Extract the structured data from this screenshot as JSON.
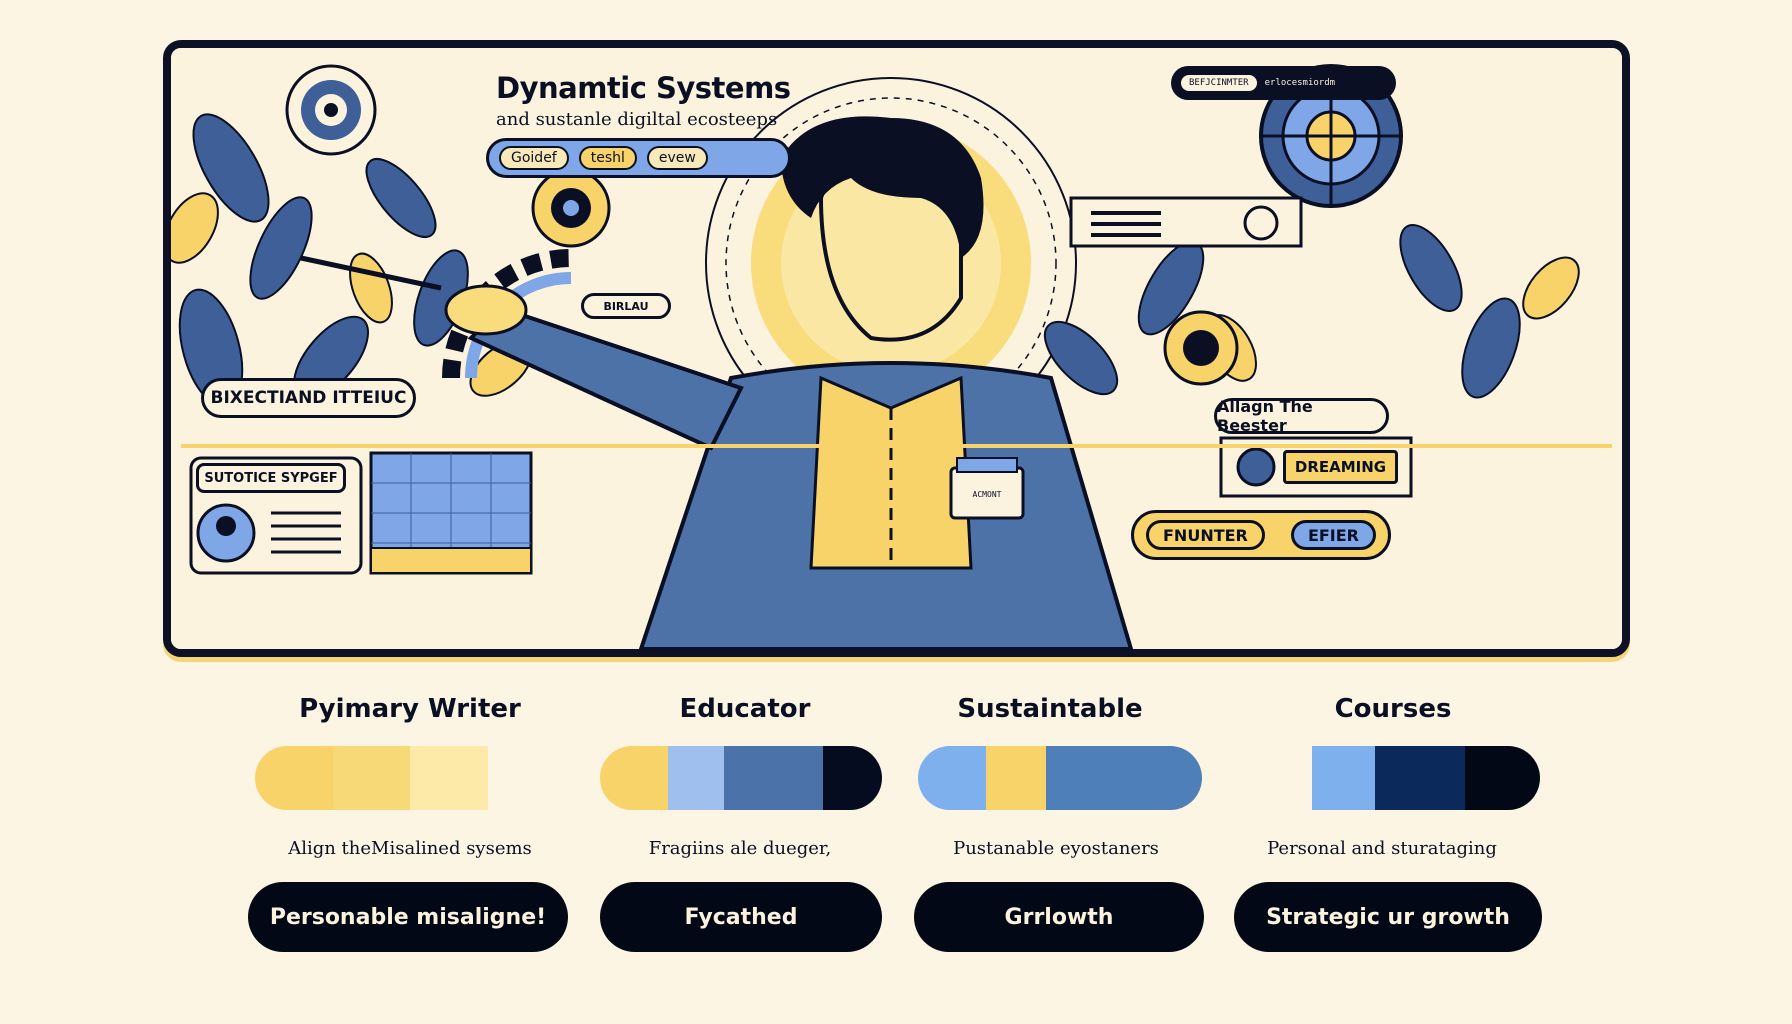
{
  "banner": {
    "title": "Dynamtic Systems",
    "subtitle": "and sustanle digiltal ecosteeps",
    "tabs": [
      "Goidef",
      "teshl",
      "evew"
    ],
    "top_field": "BEFJCINMTER",
    "top_meta": "erlocesmiordm",
    "badge_burlaw": "BIRLAU",
    "chip_left": "BIXECTIAND ITTEIUC",
    "panel_left_title": "SUTOTICE SYPGEF",
    "chip_right": "Allagn The Beester",
    "chip_dreaming": "DREAMING",
    "btn_fnunter": "FNUNTER",
    "btn_efier": "EFIER",
    "name_tag": "ACMONT"
  },
  "cards": [
    {
      "title": "Pyimary Writer",
      "caption": "Align theMisalined sysems",
      "button": "Personable misaligne!",
      "colors": [
        "#f7d36a",
        "#f8d978",
        "#fde9a8",
        "#fcf5e4"
      ]
    },
    {
      "title": "Educator",
      "caption": "Fragiins ale dueger,",
      "button": "Fycathed",
      "colors": [
        "#f7d36a",
        "#9fc0ee",
        "#4c73a9",
        "#060c20"
      ]
    },
    {
      "title": "Sustaintable",
      "caption": "Pustanable eyostaners",
      "button": "Grrlowth",
      "colors": [
        "#7fb0ee",
        "#f7d36a",
        "#4f7fb9",
        "#4f7fb9"
      ]
    },
    {
      "title": "Courses",
      "caption": "Personal and sturataging",
      "button": "Strategic ur growth",
      "colors": [
        "#fcf5e4",
        "#7fb0ee",
        "#0b2a5b",
        "#030817"
      ]
    }
  ],
  "colors": {
    "navy": "#0b0f23",
    "yellow": "#f7d36a",
    "blue": "#7fa6e6",
    "cream": "#fcf5e4"
  }
}
